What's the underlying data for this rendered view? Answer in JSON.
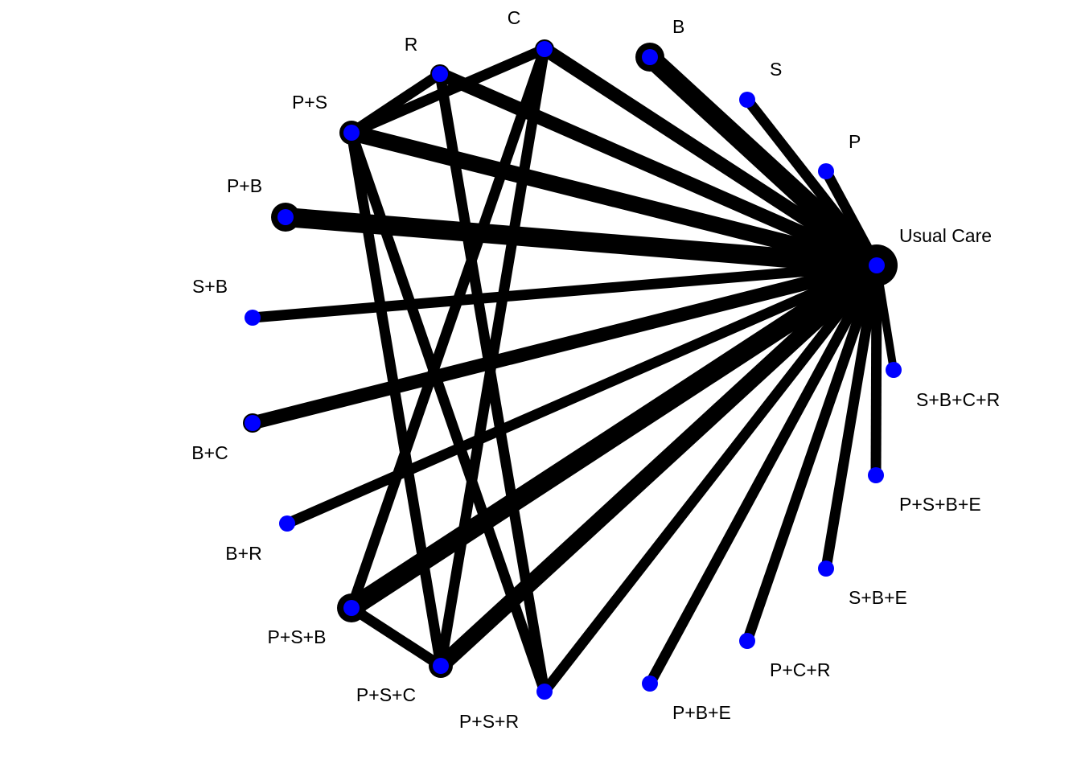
{
  "diagram": {
    "type": "network-graph",
    "node_color": "#0000ff",
    "edge_color": "#000000",
    "background": "#ffffff",
    "nodes": [
      {
        "id": "usual_care",
        "label": "Usual Care"
      },
      {
        "id": "p",
        "label": "P"
      },
      {
        "id": "s",
        "label": "S"
      },
      {
        "id": "b",
        "label": "B"
      },
      {
        "id": "c",
        "label": "C"
      },
      {
        "id": "r",
        "label": "R"
      },
      {
        "id": "ps",
        "label": "P+S"
      },
      {
        "id": "pb",
        "label": "P+B"
      },
      {
        "id": "sb",
        "label": "S+B"
      },
      {
        "id": "bc",
        "label": "B+C"
      },
      {
        "id": "br",
        "label": "B+R"
      },
      {
        "id": "psb",
        "label": "P+S+B"
      },
      {
        "id": "psc",
        "label": "P+S+C"
      },
      {
        "id": "psr",
        "label": "P+S+R"
      },
      {
        "id": "pbe",
        "label": "P+B+E"
      },
      {
        "id": "pcr",
        "label": "P+C+R"
      },
      {
        "id": "sbe",
        "label": "S+B+E"
      },
      {
        "id": "psbe",
        "label": "P+S+B+E"
      },
      {
        "id": "sbcr",
        "label": "S+B+C+R"
      }
    ],
    "edges": [
      {
        "from": "usual_care",
        "to": "b",
        "weight": 5
      },
      {
        "from": "usual_care",
        "to": "s",
        "weight": 2
      },
      {
        "from": "usual_care",
        "to": "p",
        "weight": 2
      },
      {
        "from": "usual_care",
        "to": "c",
        "weight": 3
      },
      {
        "from": "usual_care",
        "to": "r",
        "weight": 3
      },
      {
        "from": "usual_care",
        "to": "ps",
        "weight": 4
      },
      {
        "from": "usual_care",
        "to": "pb",
        "weight": 5
      },
      {
        "from": "usual_care",
        "to": "sb",
        "weight": 2
      },
      {
        "from": "usual_care",
        "to": "bc",
        "weight": 3
      },
      {
        "from": "usual_care",
        "to": "br",
        "weight": 2
      },
      {
        "from": "usual_care",
        "to": "psb",
        "weight": 5
      },
      {
        "from": "usual_care",
        "to": "psc",
        "weight": 4
      },
      {
        "from": "usual_care",
        "to": "psr",
        "weight": 2
      },
      {
        "from": "usual_care",
        "to": "pbe",
        "weight": 2
      },
      {
        "from": "usual_care",
        "to": "pcr",
        "weight": 2
      },
      {
        "from": "usual_care",
        "to": "sbe",
        "weight": 2
      },
      {
        "from": "usual_care",
        "to": "psbe",
        "weight": 2
      },
      {
        "from": "usual_care",
        "to": "sbcr",
        "weight": 1
      },
      {
        "from": "ps",
        "to": "r",
        "weight": 2
      },
      {
        "from": "ps",
        "to": "c",
        "weight": 2
      },
      {
        "from": "ps",
        "to": "psc",
        "weight": 2
      },
      {
        "from": "ps",
        "to": "psr",
        "weight": 2
      },
      {
        "from": "r",
        "to": "psr",
        "weight": 2
      },
      {
        "from": "c",
        "to": "psb",
        "weight": 2
      },
      {
        "from": "c",
        "to": "psc",
        "weight": 2
      },
      {
        "from": "psb",
        "to": "psc",
        "weight": 2
      }
    ]
  }
}
